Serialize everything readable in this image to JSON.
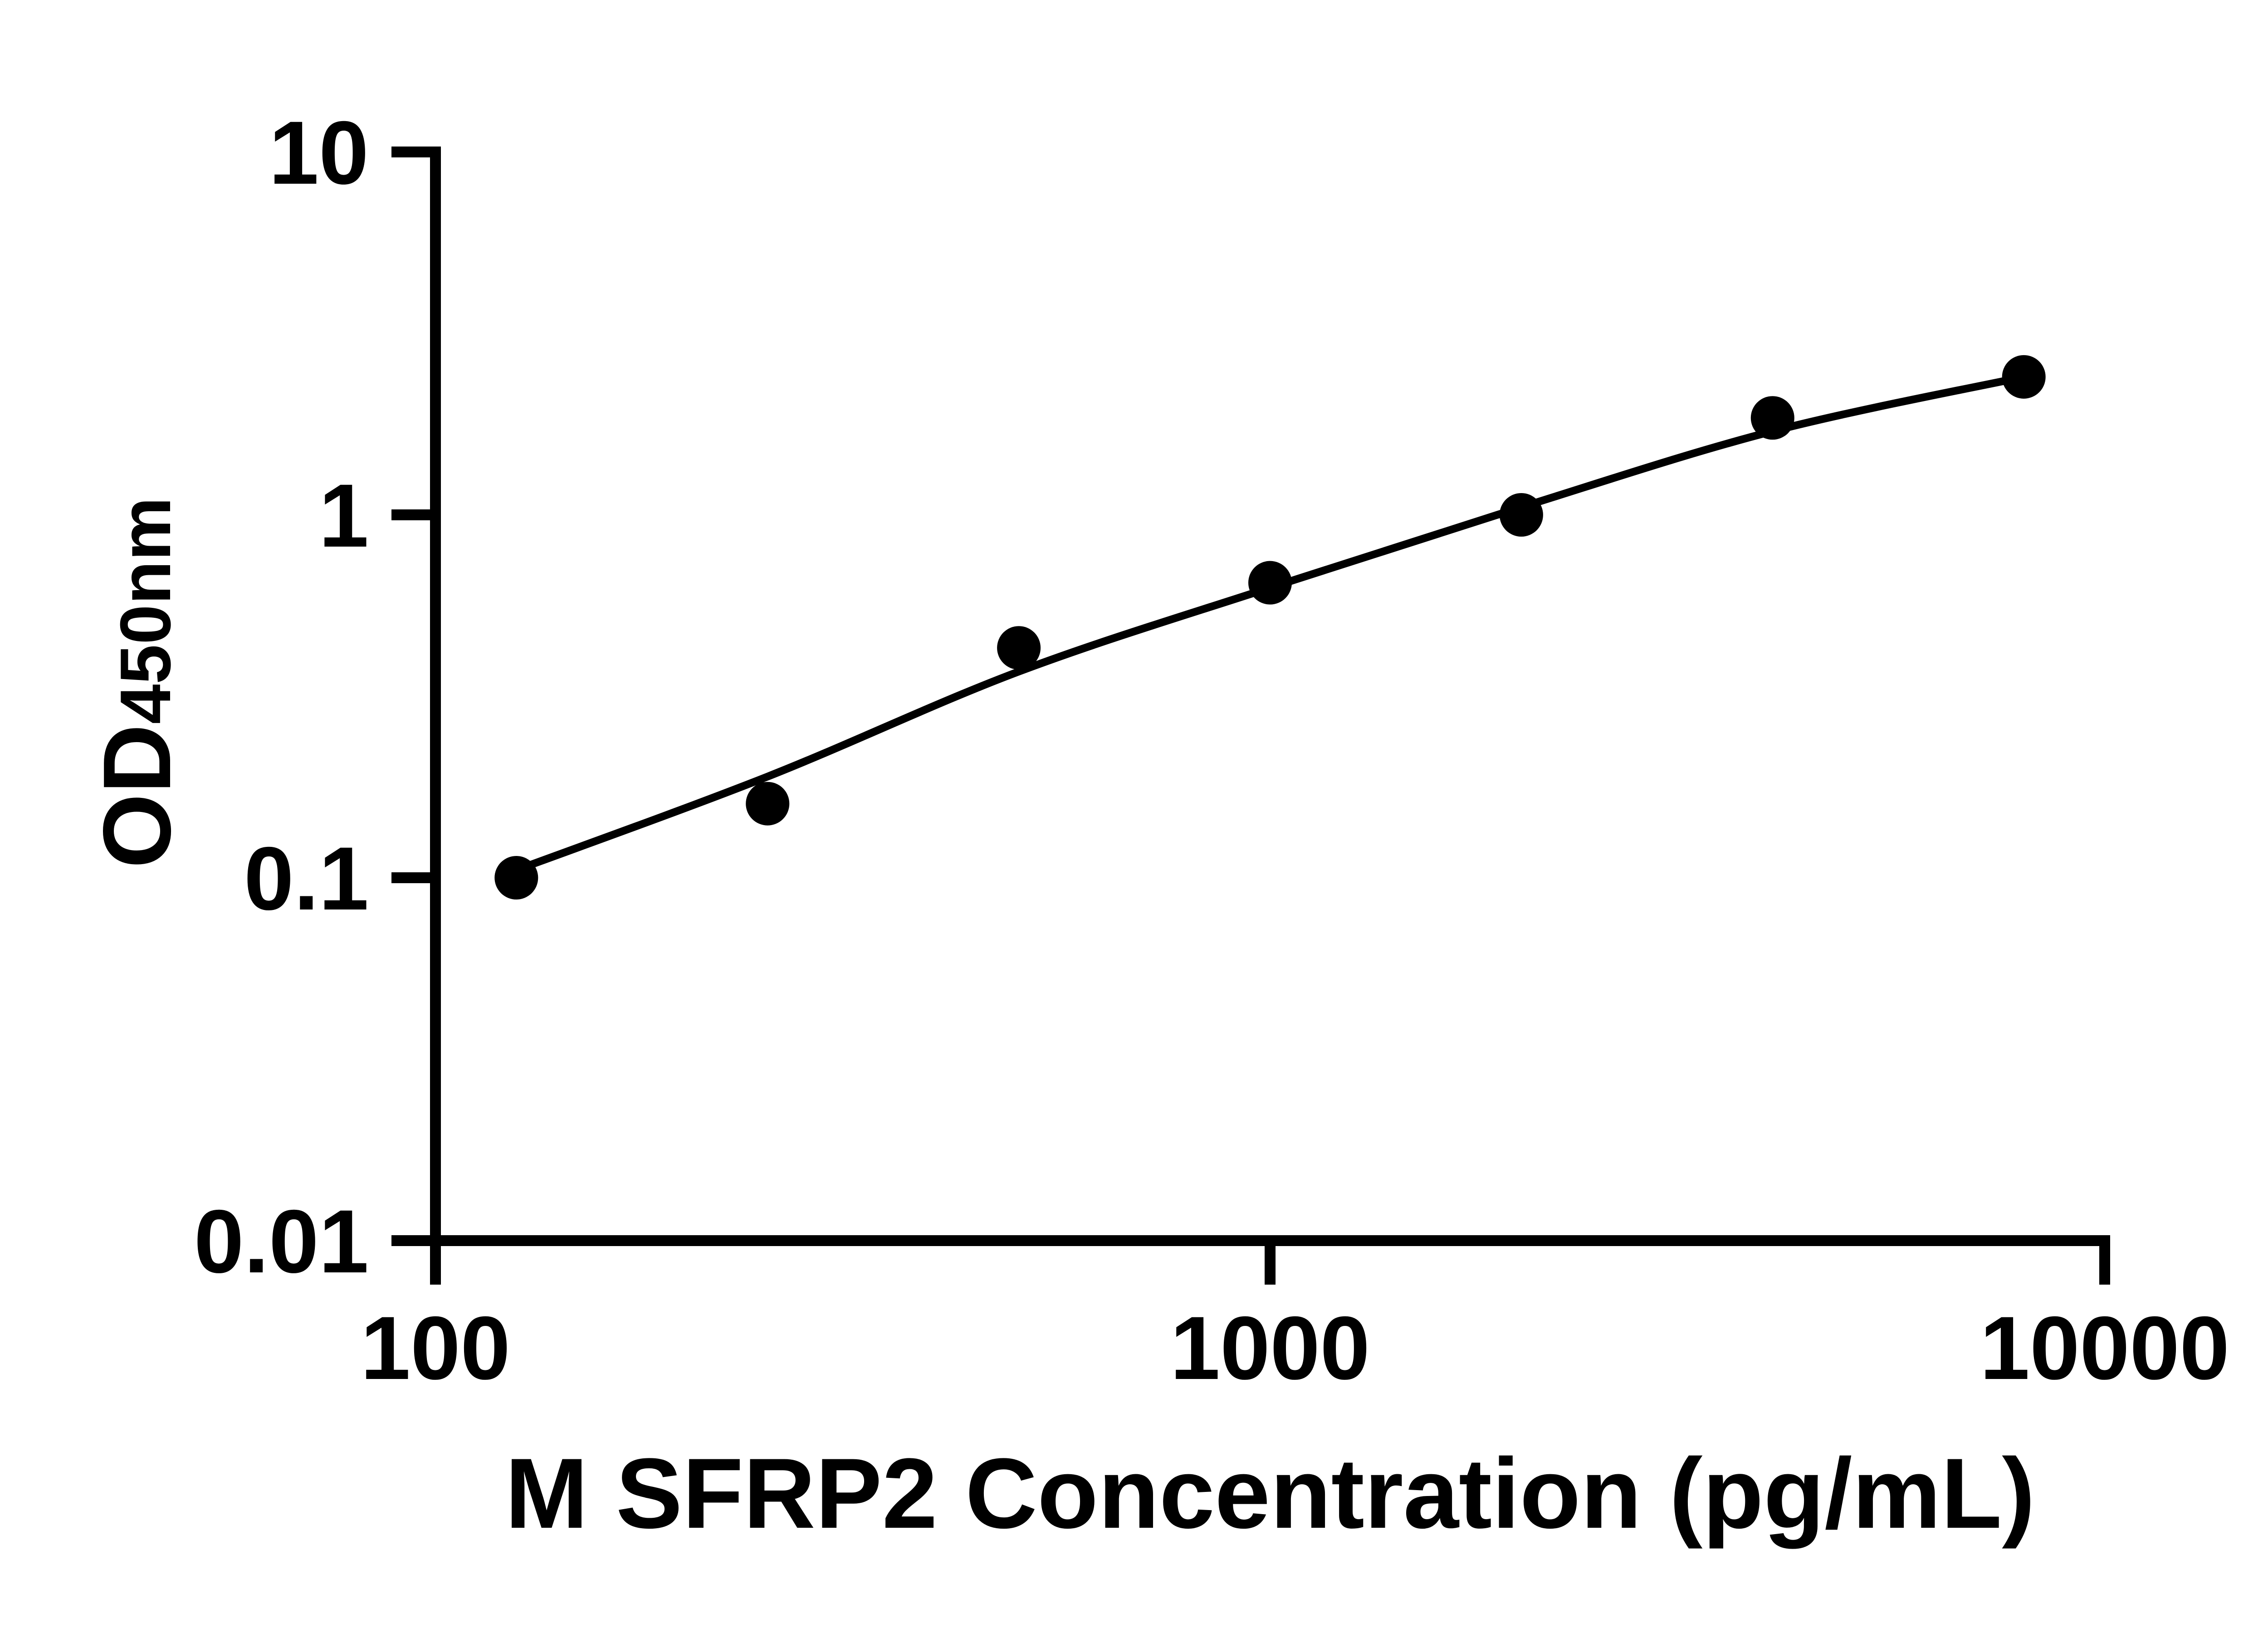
{
  "chart_data": {
    "type": "scatter",
    "title": "",
    "xlabel": "M SFRP2 Concentration (pg/mL)",
    "ylabel_main": "OD",
    "ylabel_sub": "450nm",
    "x_scale": "log",
    "y_scale": "log",
    "xlim": [
      100,
      10000
    ],
    "ylim": [
      0.01,
      10
    ],
    "grid": false,
    "legend": null,
    "x_ticks": [
      {
        "value": 100,
        "label": "100"
      },
      {
        "value": 1000,
        "label": "1000"
      },
      {
        "value": 10000,
        "label": "10000"
      }
    ],
    "y_ticks": [
      {
        "value": 10,
        "label": "10"
      },
      {
        "value": 1,
        "label": "1"
      },
      {
        "value": 0.1,
        "label": "0.1"
      },
      {
        "value": 0.01,
        "label": "0.01"
      }
    ],
    "series": [
      {
        "name": "standard-curve-points",
        "marker": "filled-circle",
        "x": [
          125,
          250,
          500,
          1000,
          2000,
          4000,
          8000
        ],
        "y": [
          0.1,
          0.16,
          0.43,
          0.65,
          1.0,
          1.85,
          2.4
        ]
      }
    ],
    "fit_curve": {
      "name": "four-parameter-fit-line",
      "x": [
        125,
        250,
        500,
        1000,
        2000,
        4000,
        8000
      ],
      "y": [
        0.105,
        0.19,
        0.37,
        0.63,
        1.05,
        1.7,
        2.4
      ]
    },
    "colors": {
      "marker": "#000000",
      "line": "#000000",
      "axis": "#000000",
      "text": "#000000",
      "background": "#ffffff"
    }
  }
}
